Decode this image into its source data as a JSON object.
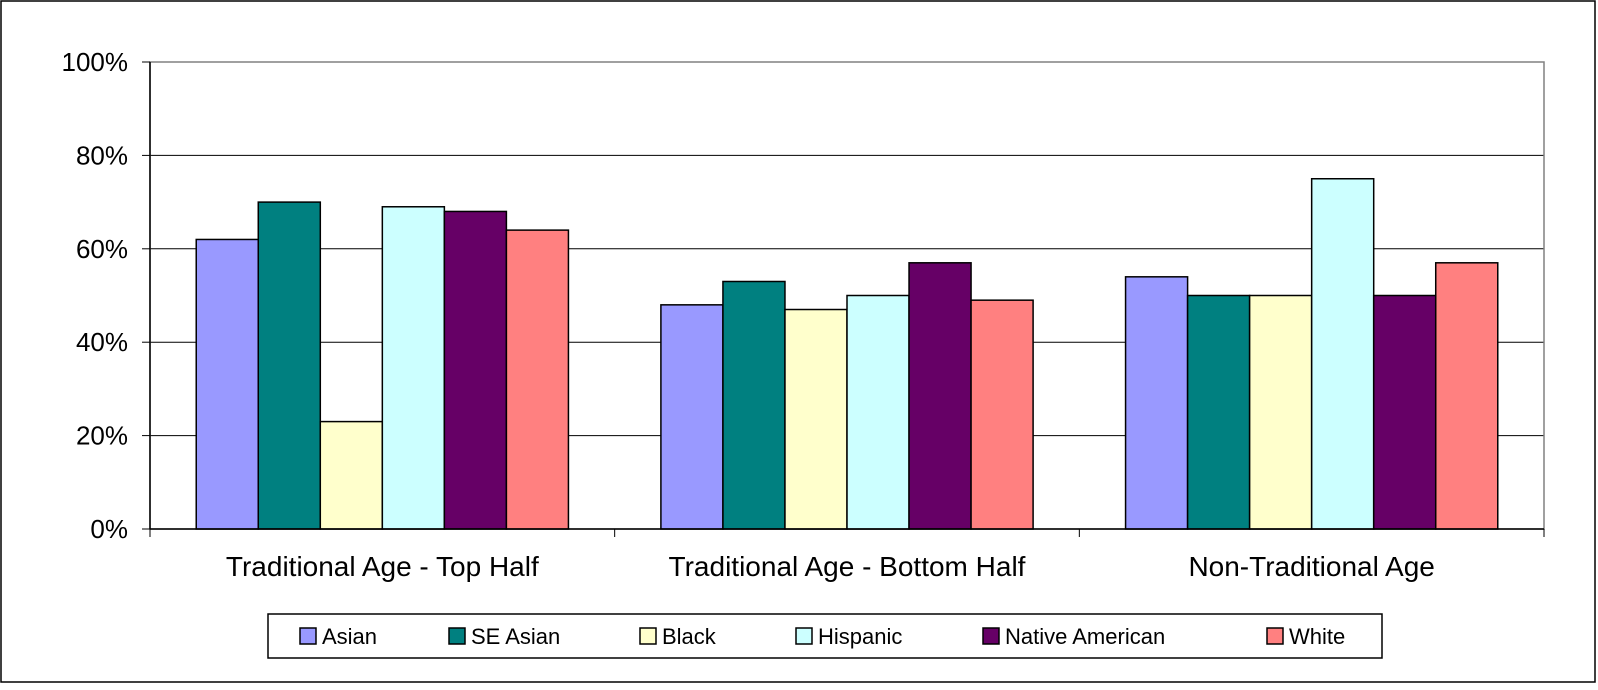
{
  "chart_data": {
    "type": "bar",
    "title": "",
    "xlabel": "",
    "ylabel": "",
    "ylim": [
      0,
      100
    ],
    "y_ticks": [
      "0%",
      "20%",
      "40%",
      "60%",
      "80%",
      "100%"
    ],
    "grid": true,
    "legend_position": "bottom",
    "categories": [
      "Traditional Age - Top Half",
      "Traditional Age - Bottom Half",
      "Non-Traditional Age"
    ],
    "series": [
      {
        "name": "Asian",
        "color": "#9999FF",
        "values": [
          62,
          48,
          54
        ]
      },
      {
        "name": "SE Asian",
        "color": "#008080",
        "values": [
          70,
          53,
          50
        ]
      },
      {
        "name": "Black",
        "color": "#FFFFCC",
        "values": [
          23,
          47,
          50
        ]
      },
      {
        "name": "Hispanic",
        "color": "#CCFFFF",
        "values": [
          69,
          50,
          75
        ]
      },
      {
        "name": "Native American",
        "color": "#660066",
        "values": [
          68,
          57,
          50
        ]
      },
      {
        "name": "White",
        "color": "#FF8080",
        "values": [
          64,
          49,
          57
        ]
      }
    ]
  }
}
